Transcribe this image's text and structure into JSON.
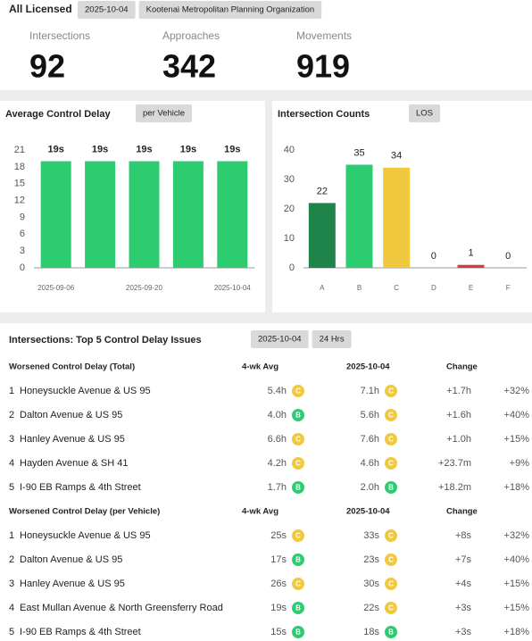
{
  "header": {
    "title": "All Licensed",
    "chips": [
      "2025-10-04",
      "Kootenai Metropolitan Planning Organization"
    ]
  },
  "stats": [
    {
      "label": "Intersections",
      "value": 92
    },
    {
      "label": "Approaches",
      "value": 342
    },
    {
      "label": "Movements",
      "value": 919
    }
  ],
  "chart_data": [
    {
      "type": "bar",
      "title": "Average Control Delay",
      "badge": "per Vehicle",
      "categories": [
        "2025-09-06",
        null,
        "2025-09-20",
        null,
        "2025-10-04"
      ],
      "values": [
        19,
        19,
        19,
        19,
        19
      ],
      "value_labels": [
        "19s",
        "19s",
        "19s",
        "19s",
        "19s"
      ],
      "color": "#2ecc71",
      "ylim": [
        0,
        21
      ],
      "yticks": [
        0,
        3,
        6,
        9,
        12,
        15,
        18,
        21
      ]
    },
    {
      "type": "bar",
      "title": "Intersection Counts",
      "badge": "LOS",
      "categories": [
        "A",
        "B",
        "C",
        "D",
        "E",
        "F"
      ],
      "values": [
        22,
        35,
        34,
        0,
        1,
        0
      ],
      "colors": [
        "#1e8449",
        "#2ecc71",
        "#f0c93f",
        "#2ecc71",
        "#d63a4a",
        "#2ecc71"
      ],
      "ylim": [
        0,
        40
      ],
      "yticks": [
        0,
        10,
        20,
        30,
        40
      ]
    }
  ],
  "table": {
    "title": "Intersections: Top 5 Control Delay Issues",
    "chips": [
      "2025-10-04",
      "24 Hrs"
    ],
    "grade_colors": {
      "B": "#2ecc71",
      "C": "#f0c93f"
    },
    "sections": [
      {
        "columns": [
          "Worsened Control Delay (Total)",
          "4-wk Avg",
          "2025-10-04",
          "Change"
        ],
        "rows": [
          [
            1,
            "Honeysuckle Avenue & US 95",
            "5.4h",
            "C",
            "7.1h",
            "C",
            "+1.7h",
            "+32%"
          ],
          [
            2,
            "Dalton Avenue & US 95",
            "4.0h",
            "B",
            "5.6h",
            "C",
            "+1.6h",
            "+40%"
          ],
          [
            3,
            "Hanley Avenue & US 95",
            "6.6h",
            "C",
            "7.6h",
            "C",
            "+1.0h",
            "+15%"
          ],
          [
            4,
            "Hayden Avenue & SH 41",
            "4.2h",
            "C",
            "4.6h",
            "C",
            "+23.7m",
            "+9%"
          ],
          [
            5,
            "I-90 EB Ramps & 4th Street",
            "1.7h",
            "B",
            "2.0h",
            "B",
            "+18.2m",
            "+18%"
          ]
        ]
      },
      {
        "columns": [
          "Worsened Control Delay (per Vehicle)",
          "4-wk Avg",
          "2025-10-04",
          "Change"
        ],
        "rows": [
          [
            1,
            "Honeysuckle Avenue & US 95",
            "25s",
            "C",
            "33s",
            "C",
            "+8s",
            "+32%"
          ],
          [
            2,
            "Dalton Avenue & US 95",
            "17s",
            "B",
            "23s",
            "C",
            "+7s",
            "+40%"
          ],
          [
            3,
            "Hanley Avenue & US 95",
            "26s",
            "C",
            "30s",
            "C",
            "+4s",
            "+15%"
          ],
          [
            4,
            "East Mullan Avenue & North Greensferry Road",
            "19s",
            "B",
            "22s",
            "C",
            "+3s",
            "+15%"
          ],
          [
            5,
            "I-90 EB Ramps & 4th Street",
            "15s",
            "B",
            "18s",
            "B",
            "+3s",
            "+18%"
          ]
        ]
      }
    ]
  }
}
